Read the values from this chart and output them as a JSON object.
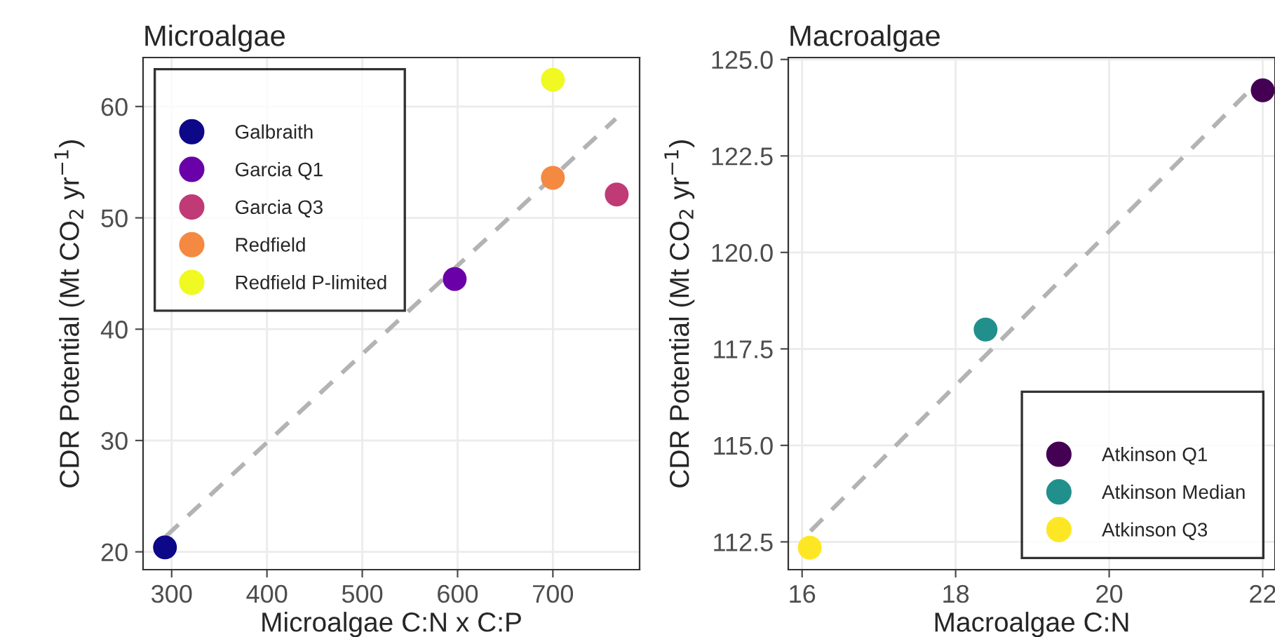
{
  "chart_data": [
    {
      "type": "scatter",
      "title": "Microalgae",
      "xlabel": "Microalgae C:N x C:P",
      "ylabel": "CDR Potential (Mt CO$_{2}$ yr$^{−1}$)",
      "xlim": [
        270,
        791
      ],
      "ylim": [
        18.4,
        64.4
      ],
      "xticks": [
        300,
        400,
        500,
        600,
        700
      ],
      "yticks": [
        20,
        30,
        40,
        50,
        60
      ],
      "grid": true,
      "legend": "top left",
      "marker": "circle",
      "series": [
        {
          "type": "line",
          "marker": "none",
          "line_style": "dashed",
          "color": "#b3b3b3",
          "x": [
            294,
            766
          ],
          "values": [
            21.4,
            58.9
          ]
        },
        {
          "name": "Galbraith",
          "color": "#0d0887",
          "x": [
            293
          ],
          "values": [
            20.4
          ]
        },
        {
          "name": "Garcia Q1",
          "color": "#6a00a8",
          "x": [
            597
          ],
          "values": [
            44.5
          ]
        },
        {
          "name": "Garcia Q3",
          "color": "#c03a76",
          "x": [
            767
          ],
          "values": [
            52.1
          ]
        },
        {
          "name": "Redfield",
          "color": "#f48942",
          "x": [
            700
          ],
          "values": [
            53.6
          ]
        },
        {
          "name": "Redfield P-limited",
          "color": "#f0f921",
          "x": [
            700
          ],
          "values": [
            62.4
          ]
        }
      ]
    },
    {
      "type": "scatter",
      "title": "Macroalgae",
      "xlabel": "Macroalgae C:N",
      "ylabel": "CDR Potential (Mt CO$_{2}$ yr$^{−1}$)",
      "xlim": [
        15.82,
        22.16
      ],
      "ylim": [
        111.78,
        125.05
      ],
      "xticks": [
        16,
        18,
        20,
        22
      ],
      "yticks": [
        {
          "value": 112.5,
          "label": "112.5"
        },
        {
          "value": 115,
          "label": "115.0"
        },
        {
          "value": 117.5,
          "label": "117.5"
        },
        {
          "value": 120,
          "label": "120.0"
        },
        {
          "value": 122.5,
          "label": "122.5"
        },
        {
          "value": 125,
          "label": "125.0"
        }
      ],
      "grid": true,
      "legend": "bottom right",
      "marker": "circle",
      "series": [
        {
          "type": "line",
          "marker": "none",
          "line_style": "dashed",
          "color": "#b3b3b3",
          "x": [
            16.11,
            21.78
          ],
          "values": [
            112.78,
            124.1
          ]
        },
        {
          "name": "Atkinson Q1",
          "color": "#440154",
          "x": [
            22.0
          ],
          "values": [
            124.2
          ]
        },
        {
          "name": "Atkinson Median",
          "color": "#21908c",
          "x": [
            18.39
          ],
          "values": [
            118.0
          ]
        },
        {
          "name": "Atkinson Q3",
          "color": "#fde725",
          "x": [
            16.1
          ],
          "values": [
            112.35
          ]
        }
      ]
    }
  ]
}
